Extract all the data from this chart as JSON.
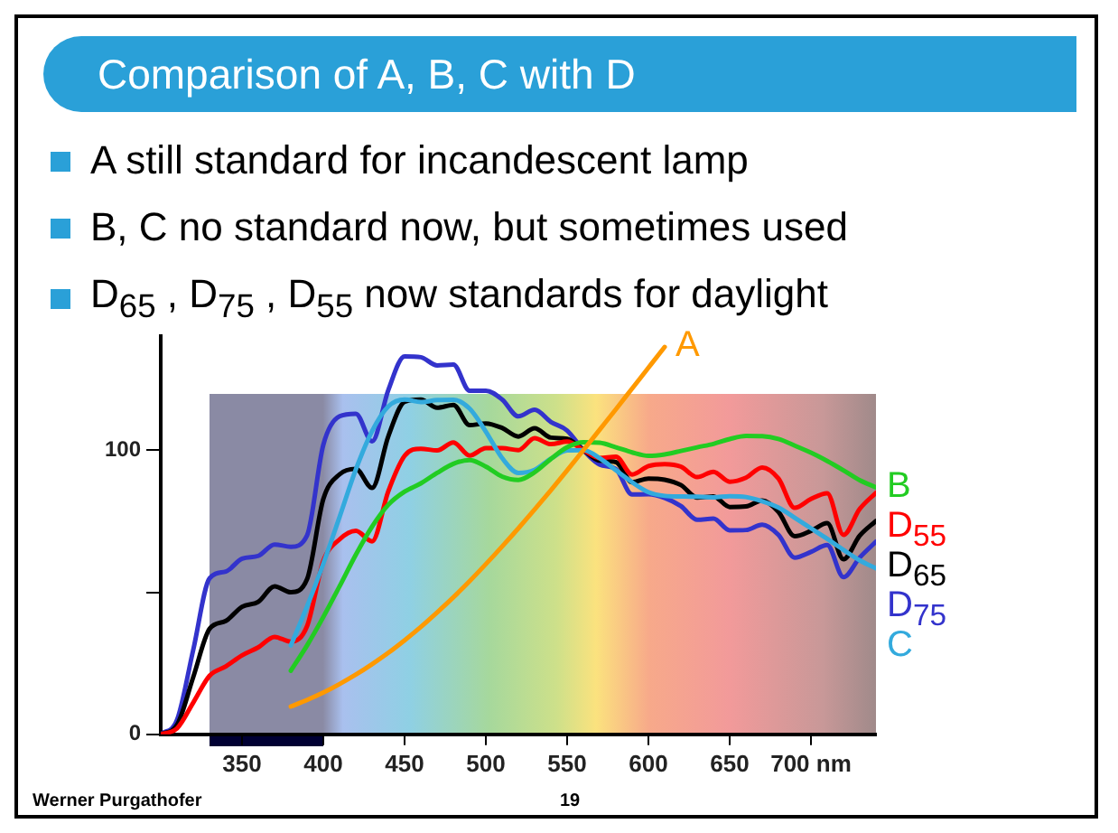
{
  "chart_data": {
    "type": "line",
    "title": "Comparison of A, B, C with D",
    "annotations": [
      "A still standard for incandescent lamp",
      "B, C no standard now, but sometimes used",
      "D$_{65}$ , D$_{75}$ , D$_{55}$ now standards for daylight",
      "Werner Purgathofer",
      "19"
    ],
    "xlim": [
      300,
      740
    ],
    "xticks": [
      350,
      400,
      450,
      500,
      550,
      600,
      650,
      {
        "value": 700,
        "label": "700 nm"
      }
    ],
    "ylim": [
      0,
      140
    ],
    "yticks": [
      0,
      {
        "value": 50,
        "label": null
      },
      100
    ],
    "grid": false,
    "legend": false,
    "marker": "none",
    "line_style": "solid",
    "series": [
      {
        "name": "A",
        "color": "#ff9900",
        "x": [
          380,
          390,
          400,
          410,
          420,
          430,
          440,
          450,
          460,
          470,
          480,
          490,
          500,
          510,
          520,
          530,
          540,
          550,
          560,
          570,
          580,
          590,
          600,
          610
        ],
        "values": [
          9.8,
          12.1,
          14.7,
          17.7,
          21,
          24.7,
          28.7,
          33.1,
          37.8,
          42.9,
          48.2,
          53.9,
          59.9,
          66.1,
          72.5,
          79.1,
          85.9,
          92.9,
          100,
          107.2,
          114.4,
          121.7,
          129,
          136.3
        ]
      },
      {
        "name": "B",
        "color": "#22cc22",
        "x": [
          380,
          390,
          400,
          410,
          420,
          430,
          440,
          450,
          460,
          470,
          480,
          490,
          500,
          510,
          520,
          530,
          540,
          550,
          560,
          570,
          580,
          590,
          600,
          610,
          620,
          630,
          640,
          650,
          660,
          670,
          680,
          690,
          700,
          710,
          720,
          730,
          740
        ],
        "values": [
          22.4,
          31.3,
          41.3,
          52.1,
          63.2,
          73.1,
          80.8,
          85.4,
          88.3,
          92,
          95.2,
          96.5,
          94.2,
          90.7,
          89.5,
          92.2,
          96.9,
          101,
          102.8,
          102.6,
          101,
          99.2,
          98,
          98.5,
          99.7,
          101,
          102.2,
          103.9,
          105,
          104.9,
          103.9,
          101.6,
          99.1,
          96.2,
          92.9,
          89.4,
          86.9
        ]
      },
      {
        "name": "C",
        "color": "#33aadd",
        "x": [
          380,
          390,
          400,
          410,
          420,
          430,
          440,
          450,
          460,
          470,
          480,
          490,
          500,
          510,
          520,
          530,
          540,
          550,
          560,
          570,
          580,
          590,
          600,
          610,
          620,
          630,
          640,
          650,
          660,
          670,
          680,
          690,
          700,
          710,
          720,
          730,
          740
        ],
        "values": [
          31.3,
          45,
          60.1,
          76.5,
          93.2,
          106.7,
          115.4,
          117.8,
          116.9,
          117.6,
          117.7,
          114.6,
          106.5,
          97.2,
          92,
          93.1,
          97,
          99.9,
          100,
          97.2,
          92.9,
          88.7,
          85.2,
          83.9,
          83.7,
          83.6,
          83.4,
          83.8,
          83.5,
          82,
          79.8,
          76.2,
          72.5,
          68.8,
          64.9,
          61.2,
          58.4
        ]
      },
      {
        "name": "D$_{55}$",
        "color": "#ff0000",
        "x": [
          300,
          310,
          320,
          330,
          340,
          350,
          360,
          370,
          380,
          390,
          400,
          410,
          420,
          430,
          440,
          450,
          460,
          470,
          480,
          490,
          500,
          510,
          520,
          530,
          540,
          550,
          560,
          570,
          580,
          590,
          600,
          610,
          620,
          630,
          640,
          650,
          660,
          670,
          680,
          690,
          700,
          710,
          720,
          730,
          740
        ],
        "values": [
          0,
          2.1,
          11.2,
          20.6,
          23.9,
          27.8,
          30.6,
          34.3,
          32.6,
          38.1,
          61,
          68.6,
          71.6,
          67.9,
          85.6,
          98,
          100.5,
          99.9,
          102.7,
          98.1,
          100.7,
          100.7,
          100,
          104.2,
          102.1,
          103,
          100,
          97.2,
          97.7,
          91.4,
          94.4,
          95.1,
          94.2,
          90.5,
          92.4,
          88.9,
          90.3,
          93.9,
          90,
          79.7,
          82.8,
          84.8,
          70.2,
          79.3,
          85
        ]
      },
      {
        "name": "D$_{65}$",
        "color": "#000000",
        "x": [
          300,
          310,
          320,
          330,
          340,
          350,
          360,
          370,
          380,
          390,
          400,
          410,
          420,
          430,
          440,
          450,
          460,
          470,
          480,
          490,
          500,
          510,
          520,
          530,
          540,
          550,
          560,
          570,
          580,
          590,
          600,
          610,
          620,
          630,
          640,
          650,
          660,
          670,
          680,
          690,
          700,
          710,
          720,
          730,
          740
        ],
        "values": [
          0,
          3.3,
          20.2,
          37.1,
          39.9,
          44.9,
          46.6,
          52.1,
          50,
          54.6,
          82.8,
          91.5,
          93.4,
          86.7,
          104.9,
          117,
          117.8,
          114.9,
          115.9,
          108.8,
          109.4,
          107.8,
          104.8,
          107.7,
          104.4,
          104,
          100,
          96.3,
          95.8,
          88.7,
          90,
          89.6,
          87.7,
          83.3,
          83.7,
          80,
          80.2,
          82.3,
          78.3,
          69.7,
          71.6,
          74.3,
          61.6,
          69.9,
          75.1
        ]
      },
      {
        "name": "D$_{75}$",
        "color": "#3333cc",
        "x": [
          300,
          310,
          320,
          330,
          340,
          350,
          360,
          370,
          380,
          390,
          400,
          410,
          420,
          430,
          440,
          450,
          460,
          470,
          480,
          490,
          500,
          510,
          520,
          530,
          540,
          550,
          560,
          570,
          580,
          590,
          600,
          610,
          620,
          630,
          640,
          650,
          660,
          670,
          680,
          690,
          700,
          710,
          720,
          730,
          740
        ],
        "values": [
          0,
          5.1,
          29.8,
          54.9,
          57.3,
          61.8,
          62.8,
          66.8,
          66,
          70,
          101.9,
          111.9,
          112.8,
          103.1,
          121.2,
          133,
          132.7,
          129.8,
          130.1,
          120.9,
          120.9,
          117.8,
          111.9,
          114.2,
          109.9,
          106.9,
          100,
          94.9,
          93.3,
          84.4,
          84.5,
          83.2,
          80.3,
          75.5,
          75.9,
          71.8,
          71.9,
          73.8,
          70.2,
          62.2,
          64.2,
          66.6,
          55.3,
          62.2,
          67.8
        ]
      }
    ]
  }
}
